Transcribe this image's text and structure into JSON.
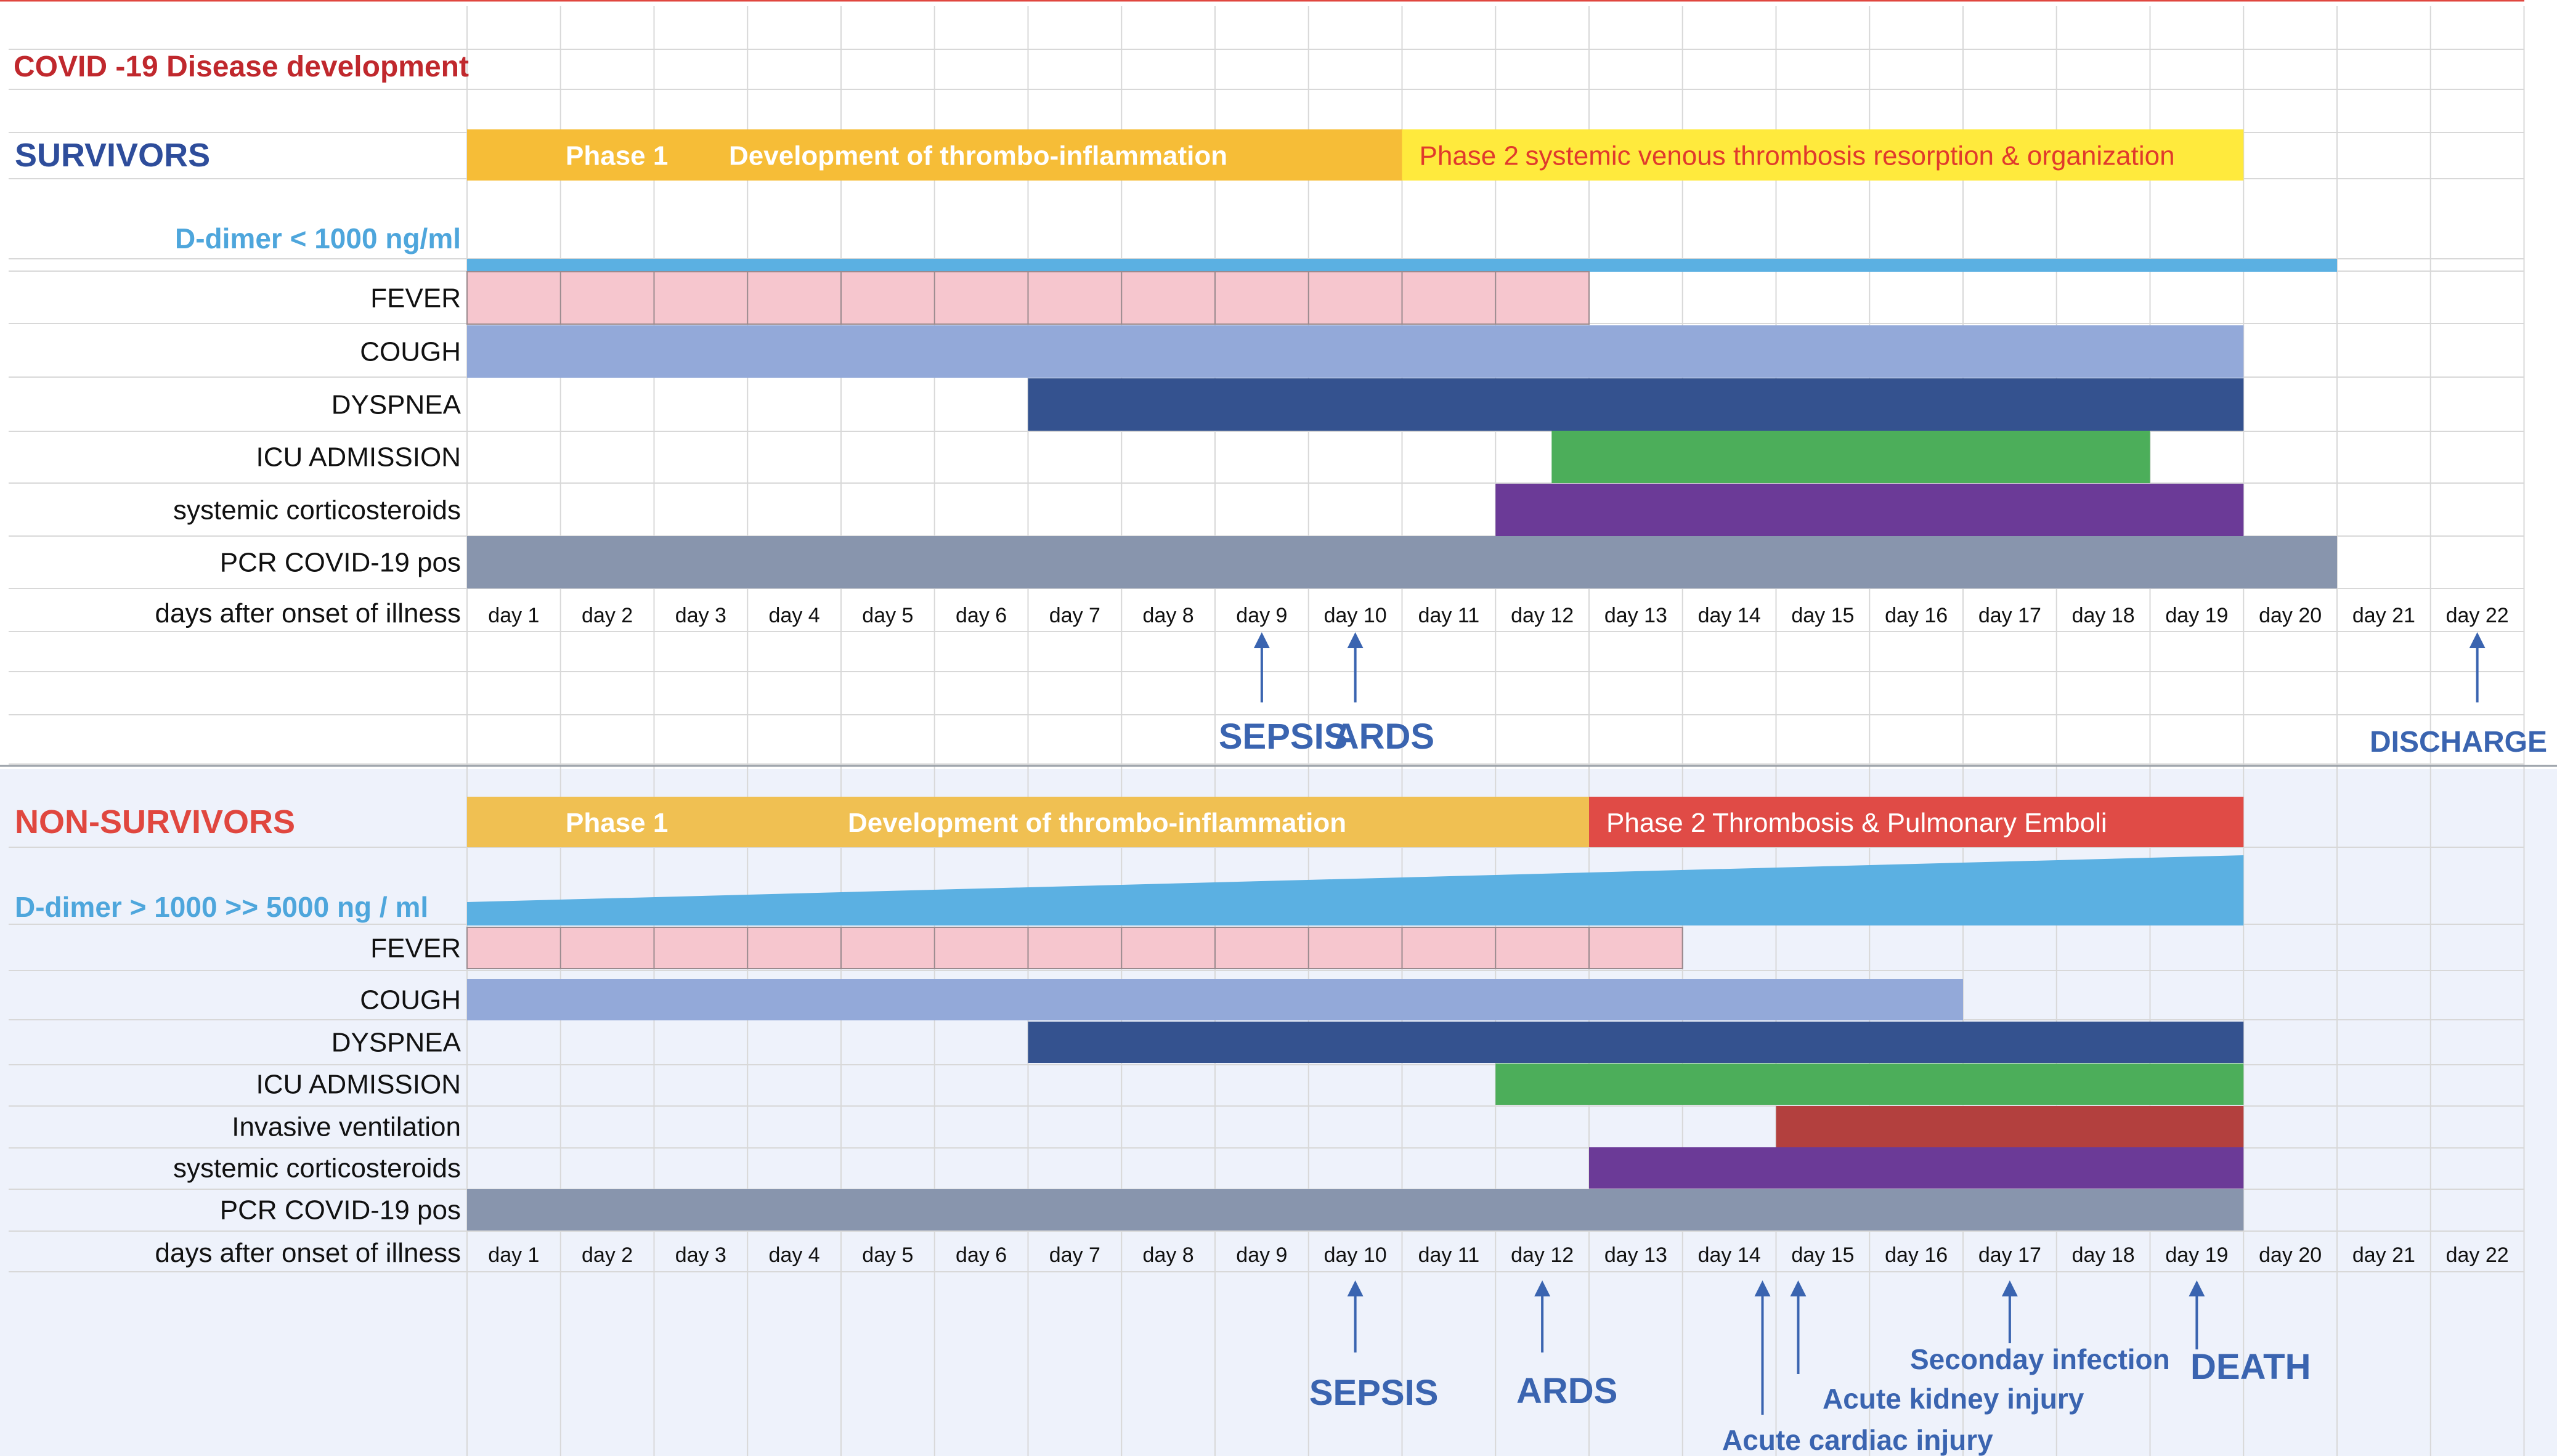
{
  "title": "COVID -19 Disease development",
  "colors": {
    "title": "#c0282d",
    "survivors_label": "#2e4d9b",
    "nonsurvivors_label": "#e0473f",
    "ddimer_text": "#4ea6dc",
    "ddimer_fill": "#5bb0e2",
    "phase1": "#f6bd37",
    "phase1_non": "#f0c052",
    "phase1_text": "#ffffff",
    "phase2_survivor": "#ffea3d",
    "phase2_survivor_text": "#e03a2c",
    "phase2_non": "#e04b46",
    "phase2_non_text": "#ffffff",
    "fever": "#f6c6ce",
    "cough": "#93a9d9",
    "dyspnea": "#34528f",
    "icu": "#4cae5a",
    "steroids": "#6b3a97",
    "pcr": "#8895ad",
    "ventilation": "#b3403e",
    "event_text": "#3a64b0",
    "grid": "#d8d8d8",
    "lower_bg": "#eef2fb"
  },
  "chart_data": [
    {
      "type": "gantt",
      "section": "SURVIVORS",
      "day_labels": [
        "day 1",
        "day 2",
        "day 3",
        "day 4",
        "day 5",
        "day 6",
        "day 7",
        "day 8",
        "day 9",
        "day 10",
        "day 11",
        "day 12",
        "day 13",
        "day 14",
        "day 15",
        "day 16",
        "day 17",
        "day 18",
        "day 19",
        "day 20",
        "day 21",
        "day 22"
      ],
      "x_axis_label": "days after onset of illness",
      "phases": [
        {
          "name": "Phase 1",
          "label": "Development of thrombo-inflammation",
          "start": 1,
          "end": 10
        },
        {
          "name": "Phase 2",
          "label": "systemic venous thrombosis resorption & organization",
          "start": 11,
          "end": 19
        }
      ],
      "ddimer": {
        "label": "D-dimer < 1000 ng/ml",
        "start": 1,
        "end": 20,
        "trend": "flat"
      },
      "rows": [
        {
          "label": "FEVER",
          "start": 1,
          "end": 12,
          "segmented": true
        },
        {
          "label": "COUGH",
          "start": 1,
          "end": 19
        },
        {
          "label": "DYSPNEA",
          "start": 7,
          "end": 19
        },
        {
          "label": "ICU ADMISSION",
          "start": 12.6,
          "end": 18
        },
        {
          "label": "systemic corticosteroids",
          "start": 12,
          "end": 19
        },
        {
          "label": "PCR COVID-19 pos",
          "start": 1,
          "end": 20
        }
      ],
      "events": [
        {
          "day": 9,
          "label": "SEPSIS"
        },
        {
          "day": 10,
          "label": "ARDS"
        },
        {
          "day": 22,
          "label": "DISCHARGE"
        }
      ]
    },
    {
      "type": "gantt",
      "section": "NON-SURVIVORS",
      "day_labels": [
        "day 1",
        "day 2",
        "day 3",
        "day 4",
        "day 5",
        "day 6",
        "day 7",
        "day 8",
        "day 9",
        "day 10",
        "day 11",
        "day 12",
        "day 13",
        "day 14",
        "day 15",
        "day 16",
        "day 17",
        "day 18",
        "day 19",
        "day 20",
        "day 21",
        "day 22"
      ],
      "x_axis_label": "days after onset of illness",
      "phases": [
        {
          "name": "Phase 1",
          "label": "Development of thrombo-inflammation",
          "start": 1,
          "end": 12
        },
        {
          "name": "Phase 2",
          "label": "Thrombosis &  Pulmonary Emboli",
          "start": 13,
          "end": 19
        }
      ],
      "ddimer": {
        "label": "D-dimer > 1000 >> 5000 ng / ml",
        "start": 1,
        "end": 19,
        "trend": "rising"
      },
      "rows": [
        {
          "label": "FEVER",
          "start": 1,
          "end": 13,
          "segmented": true
        },
        {
          "label": "COUGH",
          "start": 1,
          "end": 16
        },
        {
          "label": "DYSPNEA",
          "start": 7,
          "end": 19
        },
        {
          "label": "ICU ADMISSION",
          "start": 12,
          "end": 19
        },
        {
          "label": "Invasive ventilation",
          "start": 15,
          "end": 19
        },
        {
          "label": "systemic corticosteroids",
          "start": 13,
          "end": 19
        },
        {
          "label": "PCR COVID-19 pos",
          "start": 1,
          "end": 19
        }
      ],
      "events": [
        {
          "day": 10,
          "label": "SEPSIS"
        },
        {
          "day": 12,
          "label": "ARDS"
        },
        {
          "day": 14.8,
          "label": "Acute cardiac injury"
        },
        {
          "day": 15.2,
          "label": "Acute kidney injury"
        },
        {
          "day": 17,
          "label": "Seconday infection"
        },
        {
          "day": 19,
          "label": "DEATH"
        }
      ]
    }
  ]
}
